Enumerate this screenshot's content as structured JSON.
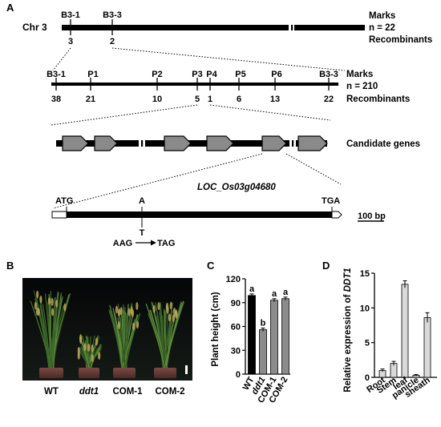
{
  "panel_a": {
    "label": "A",
    "chr_label": "Chr 3",
    "row1": {
      "markers": [
        "B3-1",
        "B3-3"
      ],
      "recombinants": [
        "3",
        "2"
      ],
      "marks_title": "Marks",
      "n_label": "n = 22",
      "recomb_title": "Recombinants"
    },
    "row2": {
      "markers": [
        "B3-1",
        "P1",
        "P2",
        "P3",
        "P4",
        "P5",
        "P6",
        "B3-3"
      ],
      "recombinants": [
        "38",
        "21",
        "10",
        "5",
        "1",
        "6",
        "13",
        "22"
      ],
      "marks_title": "Marks",
      "n_label": "n = 210",
      "recomb_title": "Recombinants"
    },
    "candidate_label": "Candidate genes",
    "gene": {
      "name": "LOC_Os03g04680",
      "start": "ATG",
      "stop": "TGA",
      "ref_base": "A",
      "alt_base": "T",
      "codon_from": "AAG",
      "codon_to": "TAG",
      "scale": "100 bp"
    }
  },
  "panel_b": {
    "label": "B",
    "lines": [
      "WT",
      "ddt1",
      "COM-1",
      "COM-2"
    ]
  },
  "panel_c": {
    "label": "C",
    "chart_data": {
      "type": "bar",
      "categories": [
        "WT",
        "ddt1",
        "COM-1",
        "COM-2"
      ],
      "values": [
        99,
        56,
        93,
        95
      ],
      "errors": [
        2,
        2,
        2,
        2
      ],
      "letters": [
        "a",
        "b",
        "a",
        "a"
      ],
      "colors": [
        "#000000",
        "#8c8c8c",
        "#8c8c8c",
        "#8c8c8c"
      ],
      "ylabel": "Plant height (cm)",
      "ylim": [
        0,
        120
      ],
      "yticks": [
        "0",
        "30",
        "60",
        "90",
        "120"
      ]
    }
  },
  "panel_d": {
    "label": "D",
    "chart_data": {
      "type": "bar",
      "categories": [
        "Root",
        "Stem",
        "leaf",
        "panicle",
        "sheath"
      ],
      "values": [
        1.0,
        2.0,
        13.4,
        0.3,
        8.6
      ],
      "errors": [
        0.2,
        0.3,
        0.5,
        0.1,
        0.7
      ],
      "bar_color": "#d9d9d9",
      "ylabel_prefix": "Relative expression of ",
      "ylabel_gene": "DDT1",
      "ylim": [
        0,
        15
      ],
      "yticks": [
        "0",
        "5",
        "10",
        "15"
      ]
    }
  }
}
